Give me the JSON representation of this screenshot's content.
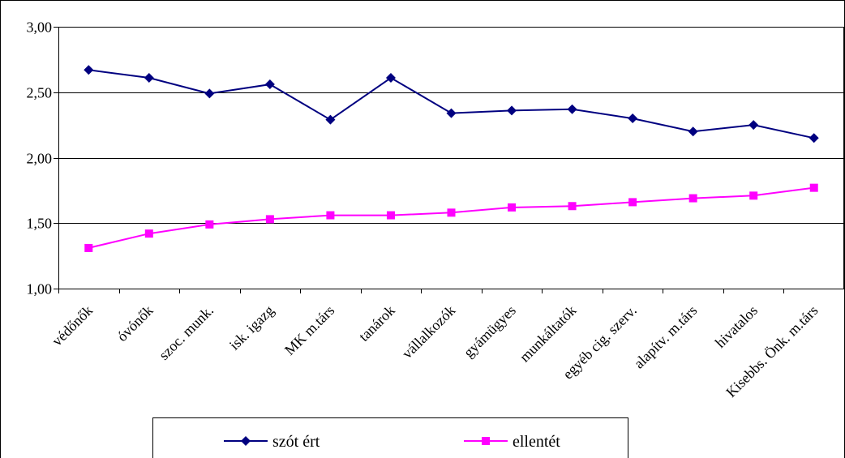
{
  "chart_data": {
    "type": "line",
    "title": "",
    "xlabel": "",
    "ylabel": "",
    "ylim": [
      1.0,
      3.0
    ],
    "yticks": [
      "1,00",
      "1,50",
      "2,00",
      "2,50",
      "3,00"
    ],
    "ytick_values": [
      1.0,
      1.5,
      2.0,
      2.5,
      3.0
    ],
    "grid": "horizontal",
    "legend_position": "bottom",
    "categories": [
      "védőnők",
      "óvónők",
      "szoc. munk.",
      "isk. igazg",
      "MK m.társ",
      "tanárok",
      "vállalkozók",
      "gyámügyes",
      "munkáltatók",
      "egyéb cig. szerv.",
      "alapítv. m.társ",
      "hivatalos",
      "Kisebbs. Önk. m.társ"
    ],
    "series": [
      {
        "name": "szót ért",
        "color": "#000080",
        "marker": "diamond",
        "values": [
          2.67,
          2.61,
          2.49,
          2.56,
          2.29,
          2.61,
          2.34,
          2.36,
          2.37,
          2.3,
          2.2,
          2.25,
          2.15
        ]
      },
      {
        "name": "ellentét",
        "color": "#FF00FF",
        "marker": "square",
        "values": [
          1.31,
          1.42,
          1.49,
          1.53,
          1.56,
          1.56,
          1.58,
          1.62,
          1.63,
          1.66,
          1.69,
          1.71,
          1.77
        ]
      }
    ]
  }
}
